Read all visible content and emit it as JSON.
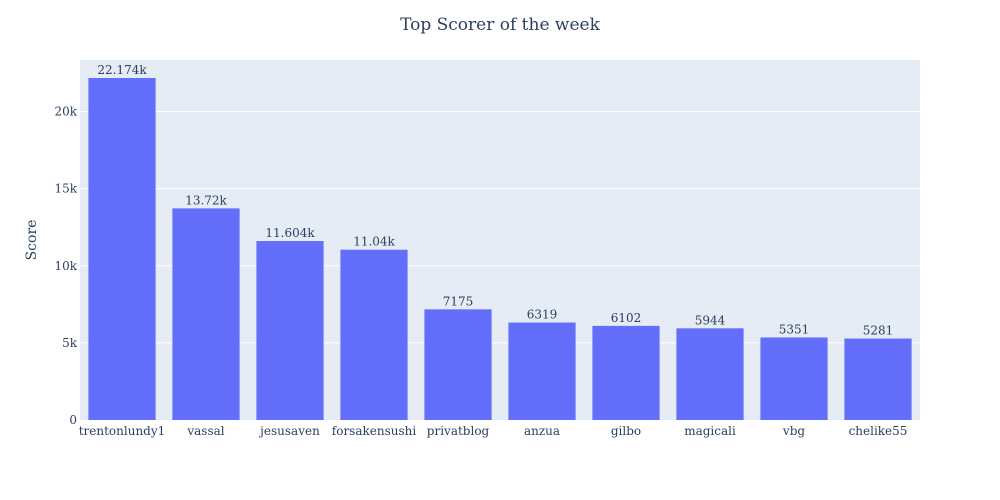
{
  "chart_data": {
    "type": "bar",
    "title": "Top Scorer of the week",
    "xlabel": "",
    "ylabel": "Score",
    "categories": [
      "trentonlundy1",
      "vassal",
      "jesusaven",
      "forsakensushi",
      "privatblog",
      "anzua",
      "gilbo",
      "magicali",
      "vbg",
      "chelike55"
    ],
    "values": [
      22174,
      13720,
      11604,
      11040,
      7175,
      6319,
      6102,
      5944,
      5351,
      5281
    ],
    "data_labels": [
      "22.174k",
      "13.72k",
      "11.604k",
      "11.04k",
      "7175",
      "6319",
      "6102",
      "5944",
      "5351",
      "5281"
    ],
    "ylim": [
      0,
      23341
    ],
    "yticks": [
      0,
      5000,
      10000,
      15000,
      20000
    ],
    "ytick_labels": [
      "0",
      "5k",
      "10k",
      "15k",
      "20k"
    ],
    "grid": true,
    "colors": {
      "bar": "#636efa",
      "plot_bg": "#e5ecf6",
      "grid": "#ffffff",
      "text": "#2a3f5f"
    }
  }
}
